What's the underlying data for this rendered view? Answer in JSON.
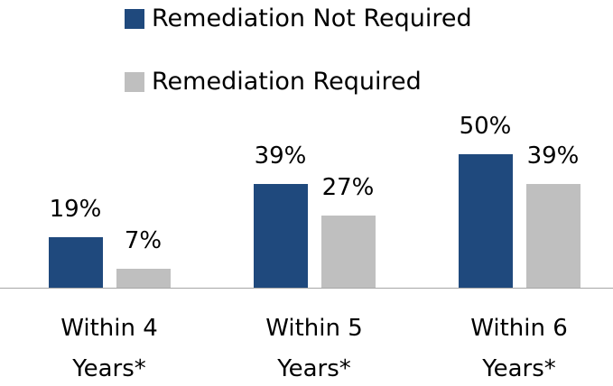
{
  "chart_data": {
    "type": "bar",
    "categories": [
      "Within 4 Years*",
      "Within 5 Years*",
      "Within 6 Years*"
    ],
    "series": [
      {
        "name": "Remediation Not Required",
        "color": "#1f497d",
        "values": [
          19,
          39,
          50
        ],
        "value_labels": [
          "19%",
          "39%",
          "50%"
        ]
      },
      {
        "name": "Remediation Required",
        "color": "#bfbfbf",
        "values": [
          7,
          27,
          39
        ],
        "value_labels": [
          "7%",
          "27%",
          "39%"
        ]
      }
    ],
    "legend": "top"
  }
}
